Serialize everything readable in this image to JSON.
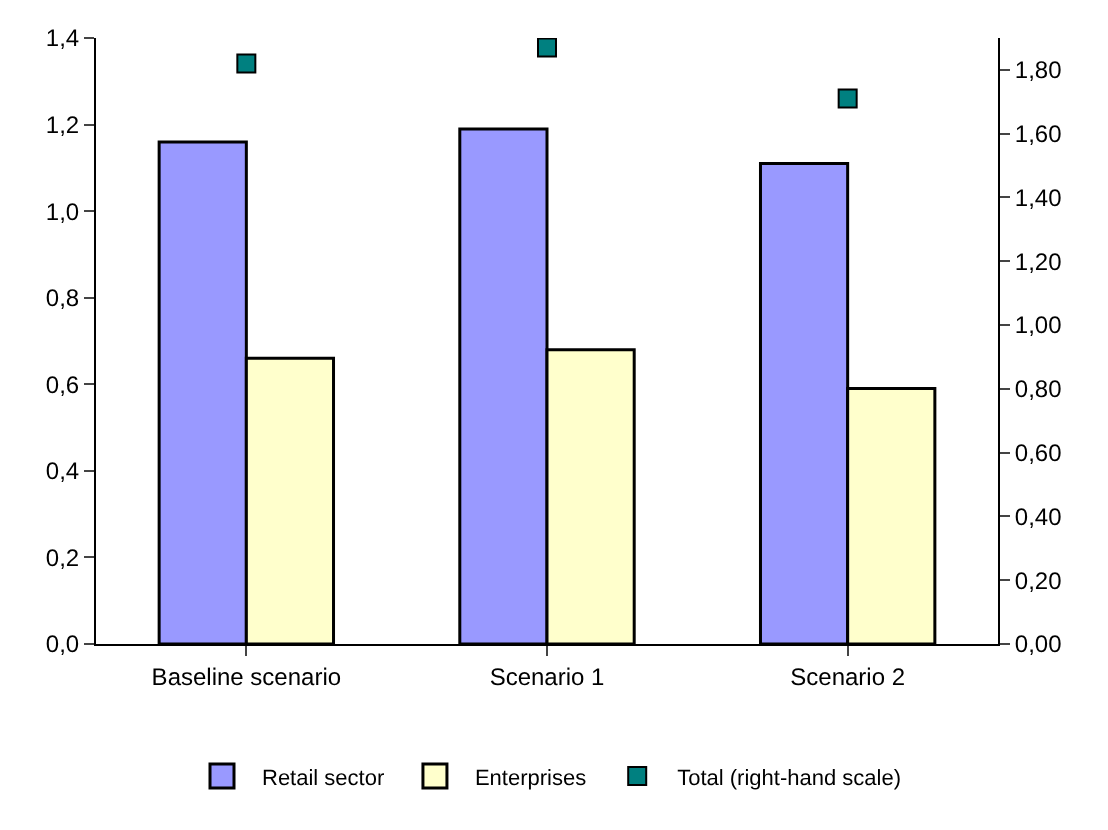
{
  "chart_data": {
    "type": "bar",
    "categories": [
      "Baseline scenario",
      "Scenario 1",
      "Scenario 2"
    ],
    "series": [
      {
        "name": "Retail sector",
        "color": "#9999ff",
        "values": [
          1.16,
          1.19,
          1.11
        ]
      },
      {
        "name": "Enterprises",
        "color": "#ffffcc",
        "values": [
          0.66,
          0.68,
          0.59
        ]
      },
      {
        "name": "Total (right-hand scale)",
        "color": "#008080",
        "values": [
          1.82,
          1.87,
          1.71
        ],
        "type": "scatter",
        "axis": "y2",
        "marker": "square"
      }
    ],
    "ylim": [
      0,
      1.4
    ],
    "yticks": [
      {
        "value": 0,
        "label": "0,0"
      },
      {
        "value": 0.2,
        "label": "0,2"
      },
      {
        "value": 0.4,
        "label": "0,4"
      },
      {
        "value": 0.6,
        "label": "0,6"
      },
      {
        "value": 0.8,
        "label": "0,8"
      },
      {
        "value": 1.0,
        "label": "1,0"
      },
      {
        "value": 1.2,
        "label": "1,2"
      },
      {
        "value": 1.4,
        "label": "1,4"
      }
    ],
    "y2lim": [
      0,
      1.9
    ],
    "y2ticks": [
      {
        "value": 0,
        "label": "0,00"
      },
      {
        "value": 0.2,
        "label": "0,20"
      },
      {
        "value": 0.4,
        "label": "0,40"
      },
      {
        "value": 0.6,
        "label": "0,60"
      },
      {
        "value": 0.8,
        "label": "0,80"
      },
      {
        "value": 1.0,
        "label": "1,00"
      },
      {
        "value": 1.2,
        "label": "1,20"
      },
      {
        "value": 1.4,
        "label": "1,40"
      },
      {
        "value": 1.6,
        "label": "1,60"
      },
      {
        "value": 1.8,
        "label": "1,80"
      }
    ],
    "legend": "bottom"
  }
}
